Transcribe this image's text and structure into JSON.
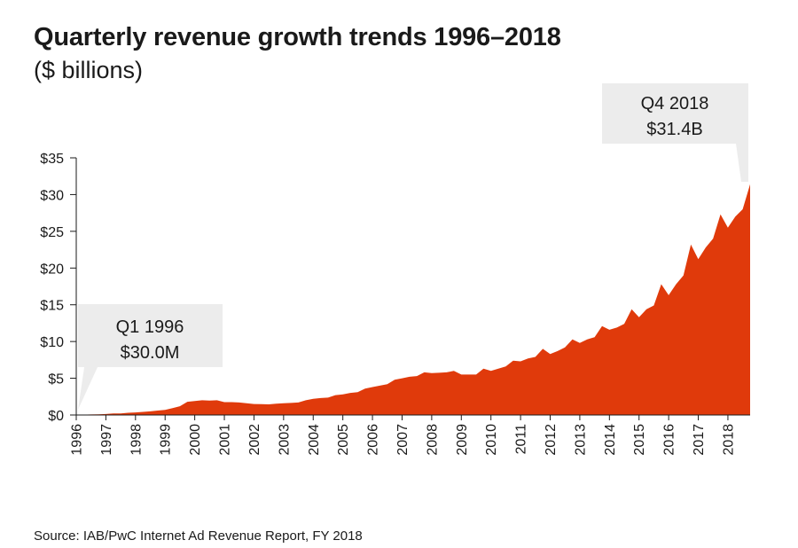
{
  "title": "Quarterly revenue growth trends 1996–2018",
  "subtitle": "($ billions)",
  "source": "Source: IAB/PwC Internet Ad Revenue Report,  FY 2018",
  "colors": {
    "area": "#e03a0b",
    "callout_bg": "#ececec",
    "axis": "#1a1a1a"
  },
  "callouts": [
    {
      "line1": "Q1 1996",
      "line2": "$30.0M"
    },
    {
      "line1": "Q4 2018",
      "line2": "$31.4B"
    }
  ],
  "chart_data": {
    "type": "area",
    "title": "Quarterly revenue growth trends 1996–2018",
    "subtitle": "($ billions)",
    "xlabel": "",
    "ylabel": "",
    "ylim": [
      0,
      35
    ],
    "yticks": [
      0,
      5,
      10,
      15,
      20,
      25,
      30,
      35
    ],
    "ytick_labels": [
      "$0",
      "$5",
      "$10",
      "$15",
      "$20",
      "$25",
      "$30",
      "$35"
    ],
    "xtick_labels": [
      "1996",
      "1997",
      "1998",
      "1999",
      "2000",
      "2001",
      "2002",
      "2003",
      "2004",
      "2005",
      "2006",
      "2007",
      "2008",
      "2009",
      "2010",
      "2011",
      "2012",
      "2013",
      "2014",
      "2015",
      "2016",
      "2017",
      "2018"
    ],
    "grid": false,
    "legend": "none",
    "series": [
      {
        "x": [
          1996.0,
          1996.25,
          1996.5,
          1996.75,
          1997.0,
          1997.25,
          1997.5,
          1997.75,
          1998.0,
          1998.25,
          1998.5,
          1998.75,
          1999.0,
          1999.25,
          1999.5,
          1999.75,
          2000.0,
          2000.25,
          2000.5,
          2000.75,
          2001.0,
          2001.25,
          2001.5,
          2001.75,
          2002.0,
          2002.25,
          2002.5,
          2002.75,
          2003.0,
          2003.25,
          2003.5,
          2003.75,
          2004.0,
          2004.25,
          2004.5,
          2004.75,
          2005.0,
          2005.25,
          2005.5,
          2005.75,
          2006.0,
          2006.25,
          2006.5,
          2006.75,
          2007.0,
          2007.25,
          2007.5,
          2007.75,
          2008.0,
          2008.25,
          2008.5,
          2008.75,
          2009.0,
          2009.25,
          2009.5,
          2009.75,
          2010.0,
          2010.25,
          2010.5,
          2010.75,
          2011.0,
          2011.25,
          2011.5,
          2011.75,
          2012.0,
          2012.25,
          2012.5,
          2012.75,
          2013.0,
          2013.25,
          2013.5,
          2013.75,
          2014.0,
          2014.25,
          2014.5,
          2014.75,
          2015.0,
          2015.25,
          2015.5,
          2015.75,
          2016.0,
          2016.25,
          2016.5,
          2016.75,
          2017.0,
          2017.25,
          2017.5,
          2017.75,
          2018.0,
          2018.25,
          2018.5,
          2018.75
        ],
        "values": [
          0.03,
          0.05,
          0.07,
          0.1,
          0.13,
          0.2,
          0.22,
          0.3,
          0.35,
          0.42,
          0.49,
          0.6,
          0.69,
          0.93,
          1.2,
          1.8,
          1.9,
          2.0,
          1.95,
          2.0,
          1.75,
          1.75,
          1.7,
          1.6,
          1.5,
          1.47,
          1.45,
          1.55,
          1.6,
          1.64,
          1.7,
          2.0,
          2.2,
          2.3,
          2.37,
          2.7,
          2.8,
          3.0,
          3.1,
          3.6,
          3.8,
          4.0,
          4.2,
          4.8,
          5.0,
          5.2,
          5.3,
          5.8,
          5.7,
          5.75,
          5.8,
          6.0,
          5.5,
          5.5,
          5.5,
          6.3,
          6.0,
          6.3,
          6.6,
          7.4,
          7.3,
          7.7,
          7.9,
          9.0,
          8.3,
          8.7,
          9.2,
          10.3,
          9.8,
          10.3,
          10.6,
          12.1,
          11.6,
          11.9,
          12.4,
          14.4,
          13.3,
          14.4,
          14.9,
          17.8,
          16.3,
          17.8,
          19.0,
          23.2,
          21.2,
          22.8,
          24.0,
          27.3,
          25.5,
          27.0,
          28.0,
          31.4
        ]
      }
    ]
  }
}
